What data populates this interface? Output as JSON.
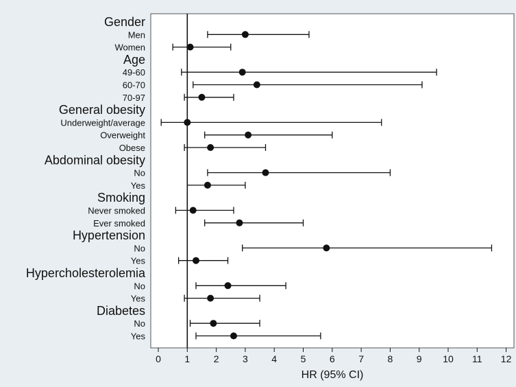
{
  "chart_data": {
    "type": "forest",
    "xlabel": "HR (95% CI)",
    "xlim": [
      0,
      12
    ],
    "xticks": [
      "0",
      "1",
      "2",
      "3",
      "4",
      "5",
      "6",
      "7",
      "8",
      "9",
      "10",
      "11",
      "12"
    ],
    "reference_line": 1,
    "grid": false,
    "groups": [
      {
        "label": "Gender",
        "rows": [
          {
            "label": "Men",
            "hr": 3.0,
            "lo": 1.7,
            "hi": 5.2
          },
          {
            "label": "Women",
            "hr": 1.1,
            "lo": 0.5,
            "hi": 2.5
          }
        ]
      },
      {
        "label": "Age",
        "rows": [
          {
            "label": "49-60",
            "hr": 2.9,
            "lo": 0.8,
            "hi": 9.6
          },
          {
            "label": "60-70",
            "hr": 3.4,
            "lo": 1.2,
            "hi": 9.1
          },
          {
            "label": "70-97",
            "hr": 1.5,
            "lo": 0.9,
            "hi": 2.6
          }
        ]
      },
      {
        "label": "General obesity",
        "rows": [
          {
            "label": "Underweight/average",
            "hr": 1.0,
            "lo": 0.1,
            "hi": 7.7
          },
          {
            "label": "Overweight",
            "hr": 3.1,
            "lo": 1.6,
            "hi": 6.0
          },
          {
            "label": "Obese",
            "hr": 1.8,
            "lo": 0.9,
            "hi": 3.7
          }
        ]
      },
      {
        "label": "Abdominal obesity",
        "rows": [
          {
            "label": "No",
            "hr": 3.7,
            "lo": 1.7,
            "hi": 8.0
          },
          {
            "label": "Yes",
            "hr": 1.7,
            "lo": 1.0,
            "hi": 3.0
          }
        ]
      },
      {
        "label": "Smoking",
        "rows": [
          {
            "label": "Never smoked",
            "hr": 1.2,
            "lo": 0.6,
            "hi": 2.6
          },
          {
            "label": "Ever smoked",
            "hr": 2.8,
            "lo": 1.6,
            "hi": 5.0
          }
        ]
      },
      {
        "label": "Hypertension",
        "rows": [
          {
            "label": "No",
            "hr": 5.8,
            "lo": 2.9,
            "hi": 11.5
          },
          {
            "label": "Yes",
            "hr": 1.3,
            "lo": 0.7,
            "hi": 2.4
          }
        ]
      },
      {
        "label": "Hypercholesterolemia",
        "rows": [
          {
            "label": "No",
            "hr": 2.4,
            "lo": 1.3,
            "hi": 4.4
          },
          {
            "label": "Yes",
            "hr": 1.8,
            "lo": 0.9,
            "hi": 3.5
          }
        ]
      },
      {
        "label": "Diabetes",
        "rows": [
          {
            "label": "No",
            "hr": 1.9,
            "lo": 1.1,
            "hi": 3.5
          },
          {
            "label": "Yes",
            "hr": 2.6,
            "lo": 1.3,
            "hi": 5.6
          }
        ]
      }
    ]
  }
}
